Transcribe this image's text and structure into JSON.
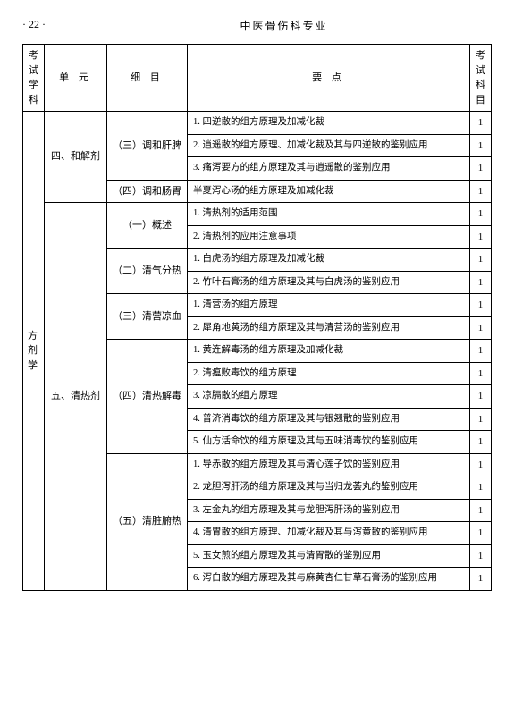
{
  "header": {
    "page_num": "· 22 ·",
    "title": "中医骨伤科专业"
  },
  "columns": {
    "c1": "考试学科",
    "c2": "单 元",
    "c3": "细 目",
    "c4": "要  点",
    "c5": "考试科目"
  },
  "subject": "方剂学",
  "unit1": "四、和解剂",
  "unit2": "五、清热剂",
  "detail_4_3": "（三）调和肝脾",
  "detail_4_4": "（四）调和肠胃",
  "detail_5_1": "（一）概述",
  "detail_5_2": "（二）清气分热",
  "detail_5_3": "（三）清营凉血",
  "detail_5_4": "（四）清热解毒",
  "detail_5_5": "（五）清脏腑热",
  "p4_3_1": "1. 四逆散的组方原理及加减化裁",
  "p4_3_2": "2. 逍遥散的组方原理、加减化裁及其与四逆散的鉴别应用",
  "p4_3_3": "3. 痛泻要方的组方原理及其与逍遥散的鉴别应用",
  "p4_4_1": "半夏泻心汤的组方原理及加减化裁",
  "p5_1_1": "1. 清热剂的适用范围",
  "p5_1_2": "2. 清热剂的应用注意事项",
  "p5_2_1": "1. 白虎汤的组方原理及加减化裁",
  "p5_2_2": "2. 竹叶石膏汤的组方原理及其与白虎汤的鉴别应用",
  "p5_3_1": "1. 清营汤的组方原理",
  "p5_3_2": "2. 犀角地黄汤的组方原理及其与清营汤的鉴别应用",
  "p5_4_1": "1. 黄连解毒汤的组方原理及加减化裁",
  "p5_4_2": "2. 清瘟败毒饮的组方原理",
  "p5_4_3": "3. 凉膈散的组方原理",
  "p5_4_4": "4. 普济消毒饮的组方原理及其与银翘散的鉴别应用",
  "p5_4_5": "5. 仙方活命饮的组方原理及其与五味消毒饮的鉴别应用",
  "p5_5_1": "1. 导赤散的组方原理及其与清心莲子饮的鉴别应用",
  "p5_5_2": "2. 龙胆泻肝汤的组方原理及其与当归龙荟丸的鉴别应用",
  "p5_5_3": "3. 左金丸的组方原理及其与龙胆泻肝汤的鉴别应用",
  "p5_5_4": "4. 清胃散的组方原理、加减化裁及其与泻黄散的鉴别应用",
  "p5_5_5": "5. 玉女煎的组方原理及其与清胃散的鉴别应用",
  "p5_5_6": "6. 泻白散的组方原理及其与麻黄杏仁甘草石膏汤的鉴别应用",
  "one": "1"
}
